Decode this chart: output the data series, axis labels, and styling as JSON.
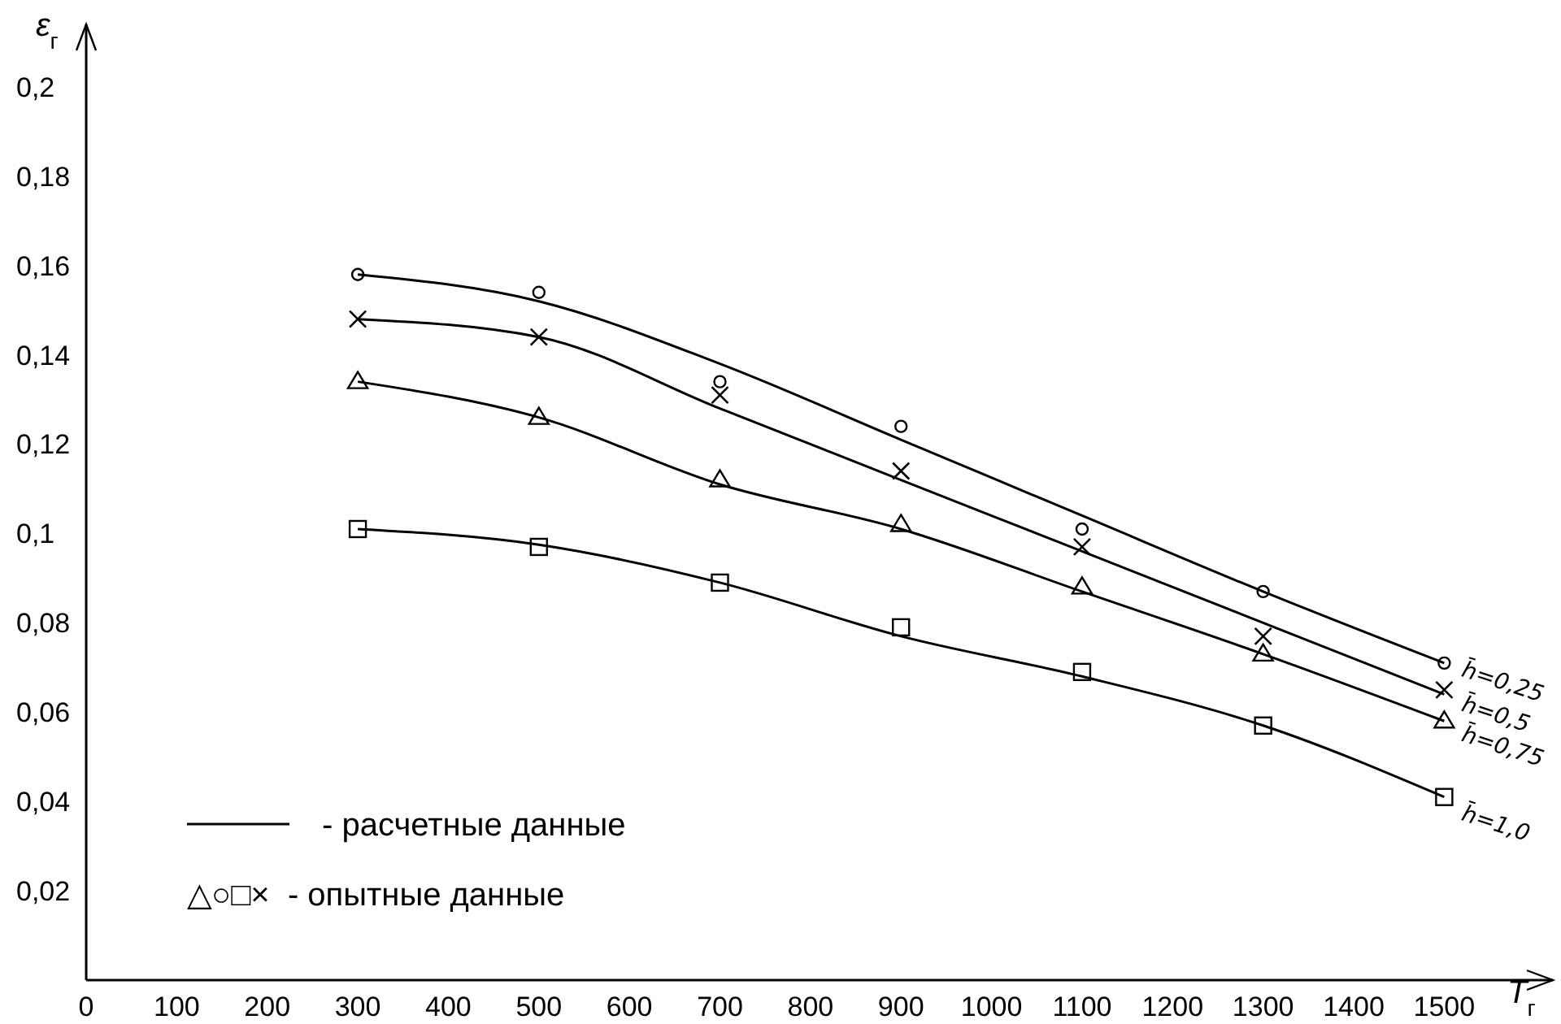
{
  "chart_data": {
    "type": "line",
    "xlabel": "T$_{г}$",
    "ylabel": "ε$_{г}$",
    "xlim": [
      0,
      1620
    ],
    "ylim": [
      0,
      0.214
    ],
    "xticks": [
      0,
      100,
      200,
      300,
      400,
      500,
      600,
      700,
      800,
      900,
      1000,
      1100,
      1200,
      1300,
      1400,
      1500
    ],
    "yticks": [
      {
        "value": 0.02,
        "label": "0,02"
      },
      {
        "value": 0.04,
        "label": "0,04"
      },
      {
        "value": 0.06,
        "label": "0,06"
      },
      {
        "value": 0.08,
        "label": "0,08"
      },
      {
        "value": 0.1,
        "label": "0,1"
      },
      {
        "value": 0.12,
        "label": "0,12"
      },
      {
        "value": 0.14,
        "label": "0,14"
      },
      {
        "value": 0.16,
        "label": "0,16"
      },
      {
        "value": 0.18,
        "label": "0,18"
      },
      {
        "value": 0.2,
        "label": "0,2"
      }
    ],
    "x": [
      300,
      500,
      700,
      900,
      1100,
      1300,
      1500
    ],
    "grid": false,
    "series": [
      {
        "name": "h̄=0,25",
        "color": "#000000",
        "marker": "none",
        "line_style": "solid",
        "values": [
          0.158,
          0.152,
          0.138,
          0.121,
          0.104,
          0.087,
          0.071
        ]
      },
      {
        "name": "h̄=0,5",
        "color": "#000000",
        "marker": "none",
        "line_style": "solid",
        "values": [
          0.148,
          0.144,
          0.128,
          0.112,
          0.096,
          0.08,
          0.064
        ]
      },
      {
        "name": "h̄=0,75",
        "color": "#000000",
        "marker": "none",
        "line_style": "solid",
        "values": [
          0.134,
          0.126,
          0.111,
          0.101,
          0.087,
          0.073,
          0.058
        ]
      },
      {
        "name": "h̄=1,0",
        "color": "#000000",
        "marker": "none",
        "line_style": "solid",
        "values": [
          0.101,
          0.0975,
          0.089,
          0.077,
          0.068,
          0.057,
          0.041
        ]
      },
      {
        "type": "scatter",
        "color": "#000000",
        "marker": "circle",
        "values": [
          0.158,
          0.154,
          0.134,
          0.124,
          0.101,
          0.087,
          0.071
        ]
      },
      {
        "type": "scatter",
        "color": "#000000",
        "marker": "cross",
        "values": [
          0.148,
          0.144,
          0.131,
          0.114,
          0.097,
          0.077,
          0.065
        ]
      },
      {
        "type": "scatter",
        "color": "#000000",
        "marker": "triangle",
        "values": [
          0.134,
          0.126,
          0.112,
          0.102,
          0.088,
          0.073,
          0.058
        ]
      },
      {
        "type": "scatter",
        "color": "#000000",
        "marker": "square",
        "values": [
          0.101,
          0.097,
          0.089,
          0.079,
          0.069,
          0.057,
          0.041
        ]
      }
    ],
    "annotations": [
      "- расчетные данные",
      "△○□×  - опытные данные"
    ]
  }
}
